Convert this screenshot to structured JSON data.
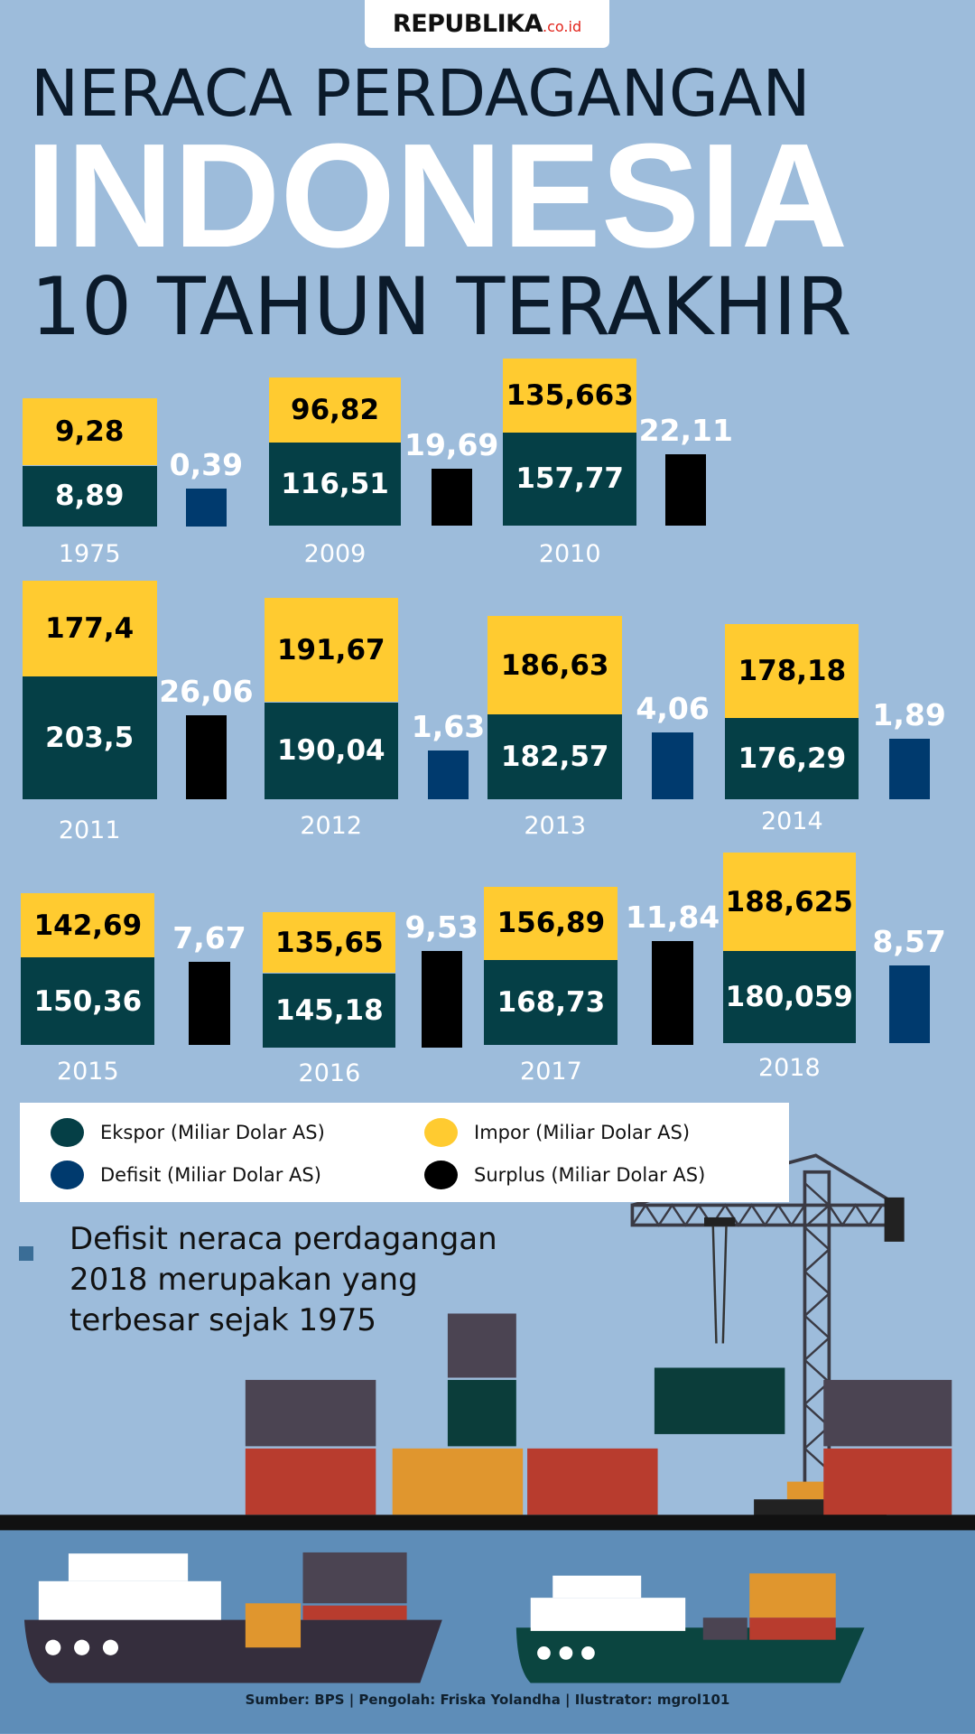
{
  "logo": {
    "brand": "REPUBLIKA",
    "domain": ".co.id"
  },
  "title": {
    "line1": "NERACA PERDAGANGAN",
    "line2": "INDONESIA",
    "line3": "10 TAHUN TERAKHIR"
  },
  "colors": {
    "background": "#9dbcdb",
    "ekspor": "#053f46",
    "impor": "#ffcb30",
    "defisit": "#003a6e",
    "surplus": "#000000",
    "sea": "#5e8db8"
  },
  "chart_data": {
    "type": "bar",
    "title": "Neraca Perdagangan Indonesia 10 Tahun Terakhir",
    "unit": "Miliar Dolar AS",
    "categories": [
      "1975",
      "2009",
      "2010",
      "2011",
      "2012",
      "2013",
      "2014",
      "2015",
      "2016",
      "2017",
      "2018"
    ],
    "series": [
      {
        "name": "Ekspor",
        "values": [
          "8,89",
          "116,51",
          "157,77",
          "203,5",
          "190,04",
          "182,57",
          "176,29",
          "150,36",
          "145,18",
          "168,73",
          "180,059"
        ]
      },
      {
        "name": "Impor",
        "values": [
          "9,28",
          "96,82",
          "135,663",
          "177,4",
          "191,67",
          "186,63",
          "178,18",
          "142,69",
          "135,65",
          "156,89",
          "188,625"
        ]
      },
      {
        "name": "Neraca",
        "values": [
          "0,39",
          "19,69",
          "22,11",
          "26,06",
          "1,63",
          "4,06",
          "1,89",
          "7,67",
          "9,53",
          "11,84",
          "8,57"
        ],
        "kind": [
          "defisit",
          "surplus",
          "surplus",
          "surplus",
          "defisit",
          "defisit",
          "defisit",
          "surplus",
          "surplus",
          "surplus",
          "defisit"
        ]
      }
    ]
  },
  "legend": [
    "Ekspor (Miliar Dolar AS)",
    "Impor (Miliar Dolar AS)",
    "Defisit (Miliar Dolar AS)",
    "Surplus (Miliar Dolar AS)"
  ],
  "note": [
    "Defisit neraca perdagangan",
    "2018 merupakan yang",
    "terbesar sejak 1975"
  ],
  "source": "Sumber: BPS | Pengolah: Friska Yolandha | Ilustrator: mgrol101"
}
